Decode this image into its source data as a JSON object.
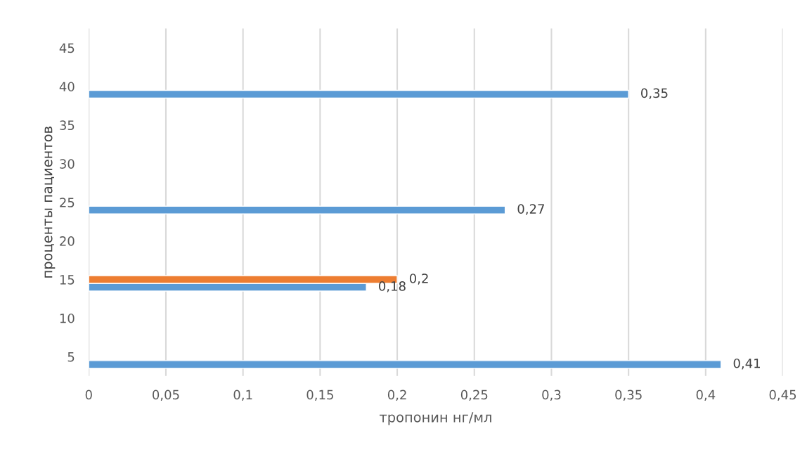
{
  "chart_data": {
    "type": "bar",
    "orientation": "horizontal",
    "xlabel": "тропонин нг/мл",
    "ylabel": "проценты пациентов",
    "series": [
      {
        "color": "#5b9bd5",
        "x": [
          4,
          14,
          24,
          39
        ],
        "values": [
          0.41,
          0.18,
          0.27,
          0.35
        ],
        "value_labels": [
          "0,41",
          "0,18",
          "0,27",
          "0,35"
        ]
      },
      {
        "color": "#ed7d31",
        "x": [
          15
        ],
        "values": [
          0.2
        ],
        "value_labels": [
          "0,2"
        ]
      }
    ],
    "xlim": [
      0,
      0.45
    ],
    "xticks": [
      0,
      {
        "value": 0.05,
        "label": "0,05"
      },
      {
        "value": 0.1,
        "label": "0,1"
      },
      {
        "value": 0.15,
        "label": "0,15"
      },
      {
        "value": 0.2,
        "label": "0,2"
      },
      {
        "value": 0.25,
        "label": "0,25"
      },
      {
        "value": 0.3,
        "label": "0,3"
      },
      {
        "value": 0.35,
        "label": "0,35"
      },
      {
        "value": 0.4,
        "label": "0,4"
      },
      {
        "value": 0.45,
        "label": "0,45"
      }
    ],
    "ylim": [
      2.5,
      47.5
    ],
    "yticks": [
      5,
      10,
      15,
      20,
      25,
      30,
      35,
      40,
      45
    ],
    "grid": "x",
    "legend": false
  }
}
